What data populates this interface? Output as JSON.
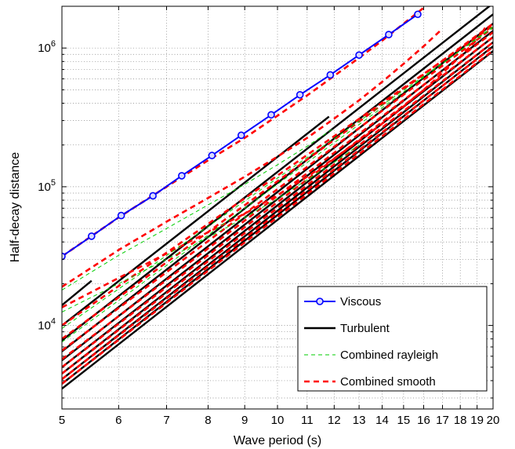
{
  "chart_data": {
    "type": "line",
    "xlabel": "Wave period (s)",
    "ylabel": "Half-decay distance",
    "xscale": "log",
    "yscale": "log",
    "xlim": [
      5,
      20
    ],
    "ylim": [
      2500,
      2000000
    ],
    "grid": true,
    "legend_position": "bottom-right",
    "x_ticks": [
      "5",
      "6",
      "7",
      "8",
      "9",
      "10",
      "11",
      "12",
      "13",
      "14",
      "15",
      "16",
      "17",
      "18",
      "19",
      "20"
    ],
    "y_ticks": [
      {
        "value": 10000,
        "base": "10",
        "exp": "4"
      },
      {
        "value": 100000,
        "base": "10",
        "exp": "5"
      },
      {
        "value": 1000000,
        "base": "10",
        "exp": "6"
      }
    ],
    "legend": [
      {
        "label": "Viscous",
        "color": "#0000ff",
        "style": "solid-marker"
      },
      {
        "label": "Turbulent",
        "color": "#000000",
        "style": "solid"
      },
      {
        "label": "Combined rayleigh",
        "color": "#00cc00",
        "style": "dashed-thin"
      },
      {
        "label": "Combined smooth",
        "color": "#ff0000",
        "style": "dashed-thick"
      }
    ],
    "series": [
      {
        "name": "Viscous",
        "kind": "viscous",
        "color": "#0000ff",
        "x": [
          5.0,
          5.5,
          6.05,
          6.7,
          7.35,
          8.1,
          8.9,
          9.8,
          10.75,
          11.85,
          13.0,
          14.3,
          15.7
        ],
        "y": [
          31500,
          44000,
          62000,
          86000,
          120000,
          168000,
          235000,
          330000,
          460000,
          640000,
          890000,
          1250000,
          1750000
        ]
      },
      {
        "name": "",
        "kind": "turbulent",
        "color": "#000000",
        "x": [
          5.0,
          5.5
        ],
        "y": [
          14000,
          21000
        ]
      },
      {
        "name": "",
        "kind": "turbulent",
        "color": "#000000",
        "x": [
          5.0,
          11.8
        ],
        "y": [
          10000,
          320000
        ]
      },
      {
        "name": "",
        "kind": "turbulent",
        "color": "#000000",
        "x": [
          5.0,
          20.0
        ],
        "y": [
          7800,
          2100000
        ]
      },
      {
        "name": "",
        "kind": "turbulent",
        "color": "#000000",
        "x": [
          5.0,
          20.0
        ],
        "y": [
          6500,
          1750000
        ]
      },
      {
        "name": "",
        "kind": "turbulent",
        "color": "#000000",
        "x": [
          5.0,
          20.0
        ],
        "y": [
          5600,
          1500000
        ]
      },
      {
        "name": "",
        "kind": "turbulent",
        "color": "#000000",
        "x": [
          5.0,
          20.0
        ],
        "y": [
          5000,
          1330000
        ]
      },
      {
        "name": "",
        "kind": "turbulent",
        "color": "#000000",
        "x": [
          5.0,
          20.0
        ],
        "y": [
          4500,
          1200000
        ]
      },
      {
        "name": "",
        "kind": "turbulent",
        "color": "#000000",
        "x": [
          5.0,
          20.0
        ],
        "y": [
          4100,
          1100000
        ]
      },
      {
        "name": "",
        "kind": "turbulent",
        "color": "#000000",
        "x": [
          5.0,
          20.0
        ],
        "y": [
          3800,
          1030000
        ]
      },
      {
        "name": "",
        "kind": "turbulent",
        "color": "#000000",
        "x": [
          5.0,
          20.0
        ],
        "y": [
          3500,
          950000
        ]
      },
      {
        "name": "",
        "kind": "smooth",
        "color": "#ff0000",
        "x": [
          5.0,
          6.0,
          7.0,
          8.0,
          9.0,
          10.0,
          11.0,
          12.0,
          13.0,
          14.0,
          15.0,
          16.0
        ],
        "y": [
          31500,
          60000,
          100000,
          155000,
          225000,
          325000,
          455000,
          630000,
          850000,
          1130000,
          1500000,
          1950000
        ]
      },
      {
        "name": "",
        "kind": "smooth",
        "color": "#ff0000",
        "x": [
          5.0,
          6.0,
          7.0,
          8.0,
          9.0,
          10.0,
          11.0,
          12.0,
          13.0,
          14.0,
          15.0,
          16.0,
          17.0
        ],
        "y": [
          19000,
          35000,
          56000,
          83000,
          118000,
          165000,
          225000,
          310000,
          420000,
          570000,
          770000,
          1030000,
          1380000
        ]
      },
      {
        "name": "",
        "kind": "smooth",
        "color": "#ff0000",
        "x": [
          5.0,
          6.0,
          7.0,
          8.0,
          9.0,
          10.0,
          11.0,
          12.0,
          13.0,
          14.0,
          15.0,
          16.0,
          17.0,
          18.0,
          19.0,
          19.5
        ],
        "y": [
          13500,
          22000,
          33000,
          47000,
          64000,
          87000,
          118000,
          160000,
          215000,
          285000,
          380000,
          500000,
          660000,
          870000,
          1150000,
          1400000
        ]
      },
      {
        "name": "",
        "kind": "smooth",
        "color": "#ff0000",
        "x": [
          5.0,
          20.0
        ],
        "y": [
          10000,
          1450000
        ]
      },
      {
        "name": "",
        "kind": "smooth",
        "color": "#ff0000",
        "x": [
          5.0,
          20.0
        ],
        "y": [
          8000,
          1500000
        ]
      },
      {
        "name": "",
        "kind": "smooth",
        "color": "#ff0000",
        "x": [
          5.0,
          20.0
        ],
        "y": [
          6600,
          1400000
        ]
      },
      {
        "name": "",
        "kind": "smooth",
        "color": "#ff0000",
        "x": [
          5.0,
          20.0
        ],
        "y": [
          5700,
          1300000
        ]
      },
      {
        "name": "",
        "kind": "smooth",
        "color": "#ff0000",
        "x": [
          5.0,
          20.0
        ],
        "y": [
          5000,
          1200000
        ]
      },
      {
        "name": "",
        "kind": "smooth",
        "color": "#ff0000",
        "x": [
          5.0,
          20.0
        ],
        "y": [
          4500,
          1100000
        ]
      },
      {
        "name": "",
        "kind": "smooth",
        "color": "#ff0000",
        "x": [
          5.0,
          20.0
        ],
        "y": [
          4100,
          1020000
        ]
      },
      {
        "name": "",
        "kind": "smooth",
        "color": "#ff0000",
        "x": [
          5.0,
          20.0
        ],
        "y": [
          3800,
          960000
        ]
      },
      {
        "name": "",
        "kind": "rayleigh",
        "color": "#00cc00",
        "x": [
          5.0,
          6.0,
          7.0,
          8.0,
          9.0,
          10.0,
          11.0,
          12.0
        ],
        "y": [
          18000,
          32000,
          50000,
          74000,
          104000,
          144000,
          196000,
          265000
        ]
      },
      {
        "name": "",
        "kind": "rayleigh",
        "color": "#00cc00",
        "x": [
          5.0,
          6.0,
          7.0,
          8.0,
          9.0,
          10.0,
          11.0,
          12.0,
          13.0
        ],
        "y": [
          12500,
          20000,
          30000,
          43000,
          60000,
          82000,
          112000,
          150000,
          200000
        ]
      },
      {
        "name": "",
        "kind": "rayleigh",
        "color": "#00cc00",
        "x": [
          5.0,
          20.0
        ],
        "y": [
          9500,
          1400000
        ]
      },
      {
        "name": "",
        "kind": "rayleigh",
        "color": "#00cc00",
        "x": [
          5.0,
          20.0
        ],
        "y": [
          7600,
          1430000
        ]
      }
    ]
  }
}
